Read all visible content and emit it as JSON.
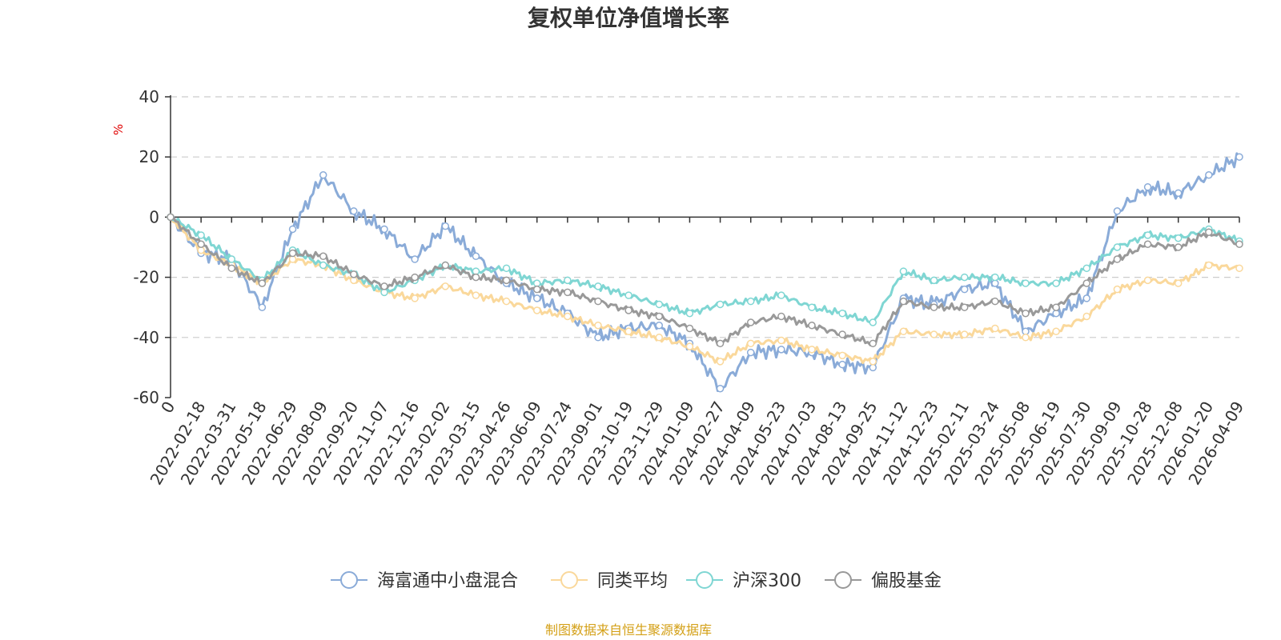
{
  "colors": {
    "axis": "#333333",
    "unit": "#e00000",
    "source": "#d4a017"
  },
  "chart_data": {
    "type": "line",
    "title": "复权单位净值增长率",
    "ylabel": "%",
    "ylim": [
      -60,
      40
    ],
    "yticks": [
      -60,
      -40,
      -20,
      0,
      20,
      40
    ],
    "grid": true,
    "legend_position": "bottom-center",
    "source": "制图数据来自恒生聚源数据库",
    "categories": [
      "0",
      "2022-02-18",
      "2022-03-31",
      "2022-05-18",
      "2022-06-29",
      "2022-08-09",
      "2022-09-20",
      "2022-11-07",
      "2022-12-16",
      "2023-02-02",
      "2023-03-15",
      "2023-04-26",
      "2023-06-09",
      "2023-07-24",
      "2023-09-01",
      "2023-10-19",
      "2023-11-29",
      "2024-01-09",
      "2024-02-27",
      "2024-04-09",
      "2024-05-23",
      "2024-07-03",
      "2024-08-13",
      "2024-09-25",
      "2024-11-12",
      "2024-12-23",
      "2025-02-11",
      "2025-03-24",
      "2025-05-08",
      "2025-06-19",
      "2025-07-30",
      "2025-09-09",
      "2025-10-28",
      "2025-12-08",
      "2026-01-20",
      "2026-04-09"
    ],
    "series": [
      {
        "name": "海富通中小盘混合",
        "color": "#8aabd8",
        "values": [
          0,
          -12,
          -14,
          -30,
          -4,
          14,
          2,
          -4,
          -14,
          -3,
          -13,
          -22,
          -27,
          -32,
          -40,
          -37,
          -36,
          -42,
          -57,
          -45,
          -44,
          -45,
          -49,
          -50,
          -27,
          -29,
          -24,
          -22,
          -38,
          -32,
          -27,
          2,
          10,
          8,
          14,
          20
        ]
      },
      {
        "name": "同类平均",
        "color": "#fad89b",
        "values": [
          0,
          -11,
          -16,
          -22,
          -14,
          -16,
          -21,
          -25,
          -27,
          -23,
          -26,
          -28,
          -31,
          -33,
          -36,
          -38,
          -40,
          -43,
          -48,
          -42,
          -41,
          -44,
          -46,
          -48,
          -38,
          -39,
          -39,
          -37,
          -40,
          -38,
          -33,
          -24,
          -21,
          -22,
          -16,
          -17
        ]
      },
      {
        "name": "沪深300",
        "color": "#7fd6d3",
        "values": [
          0,
          -6,
          -14,
          -21,
          -11,
          -16,
          -19,
          -25,
          -21,
          -16,
          -18,
          -17,
          -22,
          -21,
          -23,
          -26,
          -29,
          -32,
          -29,
          -28,
          -26,
          -30,
          -32,
          -35,
          -18,
          -21,
          -20,
          -20,
          -22,
          -22,
          -17,
          -10,
          -6,
          -7,
          -4,
          -8
        ]
      },
      {
        "name": "偏股基金",
        "color": "#999999",
        "values": [
          0,
          -9,
          -17,
          -22,
          -12,
          -13,
          -19,
          -23,
          -20,
          -16,
          -20,
          -21,
          -24,
          -25,
          -28,
          -31,
          -33,
          -37,
          -42,
          -35,
          -33,
          -36,
          -39,
          -42,
          -28,
          -30,
          -30,
          -28,
          -32,
          -30,
          -22,
          -14,
          -9,
          -10,
          -5,
          -9
        ]
      }
    ]
  }
}
